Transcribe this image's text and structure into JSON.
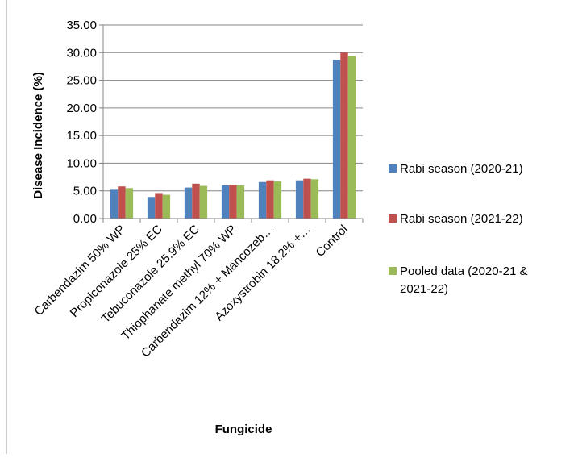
{
  "chart_data": {
    "type": "bar",
    "title": "",
    "xlabel": "Fungicide",
    "ylabel": "Disease Incidence (%)",
    "ylim": [
      0,
      35
    ],
    "ytick_step": 5,
    "ytick_labels": [
      "0.00",
      "5.00",
      "10.00",
      "15.00",
      "20.00",
      "25.00",
      "30.00",
      "35.00"
    ],
    "grid": "horizontal",
    "legend_position": "right",
    "categories": [
      "Carbendazim 50% WP",
      "Propiconazole 25% EC",
      "Tebuconazole 25.9% EC",
      "Thiophanate methyl 70% WP",
      "Carbendazim 12% + Mancozeb…",
      "Azoxystrobin 18.2% +…",
      "Control"
    ],
    "series": [
      {
        "name": "Rabi season (2020-21)",
        "color": "#4F81BD",
        "values": [
          5.2,
          3.9,
          5.6,
          6.0,
          6.6,
          6.9,
          28.7
        ]
      },
      {
        "name": "Rabi season (2021-22)",
        "color": "#C0504D",
        "values": [
          5.8,
          4.6,
          6.3,
          6.1,
          6.9,
          7.2,
          30.0
        ]
      },
      {
        "name": "Pooled data (2020-21 & 2021-22)",
        "color": "#9BBB59",
        "values": [
          5.5,
          4.3,
          5.9,
          6.0,
          6.7,
          7.1,
          29.4
        ]
      }
    ]
  }
}
